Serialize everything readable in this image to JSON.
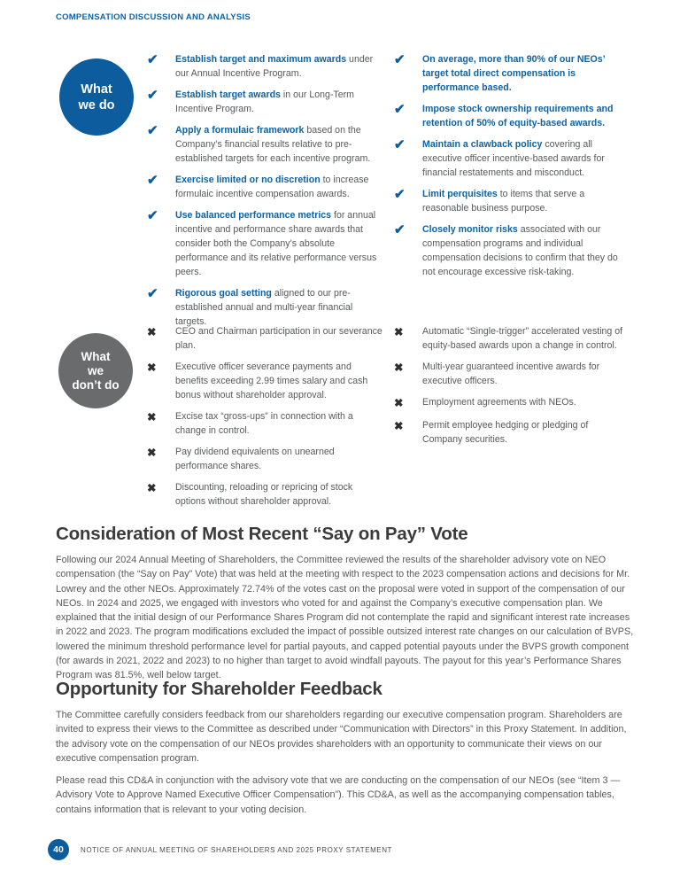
{
  "icons": {
    "check": "✔",
    "cross": "✖"
  },
  "colors": {
    "brand_blue": "#0c5c9e",
    "gray_circle": "#6a6b6d",
    "body_text": "#58595b",
    "heading": "#3b3b3c"
  },
  "header": {
    "title": "COMPENSATION DISCUSSION AND ANALYSIS"
  },
  "what_we_do": {
    "label_lines": [
      "What",
      "we do"
    ],
    "items_left": [
      {
        "bold": "Establish target and maximum awards",
        "rest": " under our Annual Incentive Program."
      },
      {
        "bold": "Establish target awards",
        "rest": " in our Long-Term Incentive Program."
      },
      {
        "bold": "Apply a formulaic framework",
        "rest": " based on the Company’s financial results relative to pre-established targets for each incentive program."
      },
      {
        "bold": "Exercise limited or no discretion",
        "rest": " to increase formulaic incentive compensation awards."
      },
      {
        "bold": "Use balanced performance metrics",
        "rest": " for annual incentive and performance share awards that consider both the Company’s absolute performance and its relative performance versus peers."
      },
      {
        "bold": "Rigorous goal setting",
        "rest": " aligned to our pre-established annual and multi-year financial targets."
      }
    ],
    "items_right": [
      {
        "bold": "On average, more than 90% of our NEOs’ target total direct compensation is performance based.",
        "rest": ""
      },
      {
        "bold": "Impose stock ownership requirements and retention of 50% of equity-based awards.",
        "rest": ""
      },
      {
        "bold": "Maintain a clawback policy",
        "rest": " covering all executive officer incentive-based awards for financial restatements and misconduct."
      },
      {
        "bold": "Limit perquisites",
        "rest": " to items that serve a reasonable business purpose."
      },
      {
        "bold": "Closely monitor risks",
        "rest": " associated with our compensation programs and individual compensation decisions to confirm that they do not encourage excessive risk-taking."
      }
    ]
  },
  "what_we_dont_do": {
    "label_lines": [
      "What",
      "we",
      "don’t do"
    ],
    "items_left": [
      "CEO and Chairman participation in our severance plan.",
      "Executive officer severance payments and benefits exceeding 2.99 times salary and cash bonus without shareholder approval.",
      "Excise tax “gross-ups” in connection with a change in control.",
      "Pay dividend equivalents on unearned performance shares.",
      "Discounting, reloading or repricing of stock options without shareholder approval."
    ],
    "items_right": [
      "Automatic “Single-trigger” accelerated vesting of equity-based awards upon a change in control.",
      "Multi-year guaranteed incentive awards for executive officers.",
      "Employment agreements with NEOs.",
      "Permit employee hedging or pledging of Company securities."
    ]
  },
  "say_on_pay": {
    "title": "Consideration of Most Recent “Say on Pay” Vote",
    "paragraph": "Following our 2024 Annual Meeting of Shareholders, the Committee reviewed the results of the shareholder advisory vote on NEO compensation (the “Say on Pay” Vote) that was held at the meeting with respect to the 2023 compensation actions and decisions for Mr. Lowrey and the other NEOs. Approximately 72.74% of the votes cast on the proposal were voted in support of the compensation of our NEOs. In 2024 and 2025, we engaged with investors who voted for and against the Company’s executive compensation plan. We explained that the initial design of our Performance Shares Program did not contemplate the rapid and significant interest rate increases in 2022 and 2023. The program modifications excluded the impact of possible outsized interest rate changes on our calculation of BVPS, lowered the minimum threshold performance level for partial payouts, and capped potential payouts under the BVPS growth component (for awards in 2021, 2022 and 2023) to no higher than target to avoid windfall payouts. The payout for this year’s Performance Shares Program was 81.5%, well below target."
  },
  "feedback": {
    "title": "Opportunity for Shareholder Feedback",
    "paragraph1": "The Committee carefully considers feedback from our shareholders regarding our executive compensation program. Shareholders are invited to express their views to the Committee as described under “Communication with Directors” in this Proxy Statement. In addition, the advisory vote on the compensation of our NEOs provides shareholders with an opportunity to communicate their views on our executive compensation program.",
    "paragraph2": "Please read this CD&A in conjunction with the advisory vote that we are conducting on the compensation of our NEOs (see “Item 3 — Advisory Vote to Approve Named Executive Officer Compensation”). This CD&A, as well as the accompanying compensation tables, contains information that is relevant to your voting decision."
  },
  "footer": {
    "page_number": "40",
    "text": "NOTICE OF ANNUAL MEETING OF SHAREHOLDERS AND 2025 PROXY STATEMENT"
  }
}
